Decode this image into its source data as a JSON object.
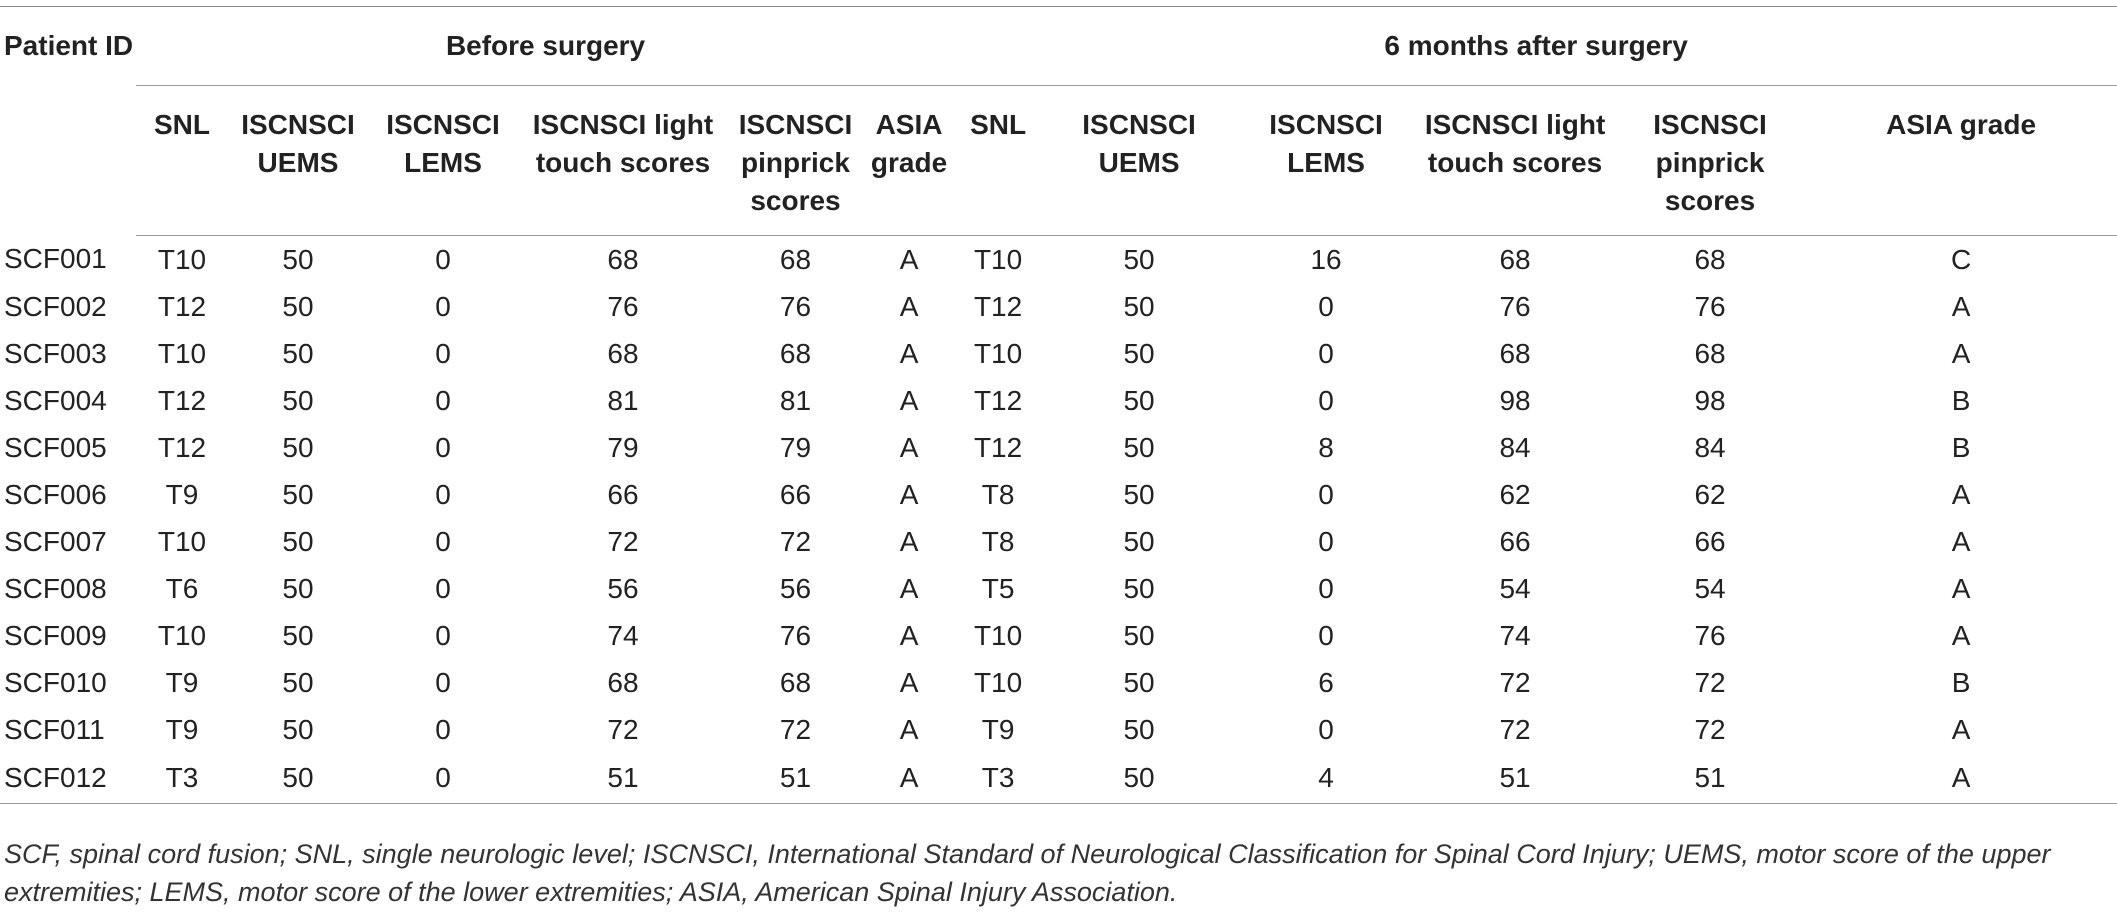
{
  "table": {
    "patient_id_header": "Patient ID",
    "group_before": "Before surgery",
    "group_after": "6 months after surgery",
    "columns": [
      "SNL",
      "ISCNSCI UEMS",
      "ISCNSCI LEMS",
      "ISCNSCI light touch scores",
      "ISCNSCI pinprick scores",
      "ASIA grade"
    ],
    "rows": [
      [
        "SCF001",
        "T10",
        "50",
        "0",
        "68",
        "68",
        "A",
        "T10",
        "50",
        "16",
        "68",
        "68",
        "C"
      ],
      [
        "SCF002",
        "T12",
        "50",
        "0",
        "76",
        "76",
        "A",
        "T12",
        "50",
        "0",
        "76",
        "76",
        "A"
      ],
      [
        "SCF003",
        "T10",
        "50",
        "0",
        "68",
        "68",
        "A",
        "T10",
        "50",
        "0",
        "68",
        "68",
        "A"
      ],
      [
        "SCF004",
        "T12",
        "50",
        "0",
        "81",
        "81",
        "A",
        "T12",
        "50",
        "0",
        "98",
        "98",
        "B"
      ],
      [
        "SCF005",
        "T12",
        "50",
        "0",
        "79",
        "79",
        "A",
        "T12",
        "50",
        "8",
        "84",
        "84",
        "B"
      ],
      [
        "SCF006",
        "T9",
        "50",
        "0",
        "66",
        "66",
        "A",
        "T8",
        "50",
        "0",
        "62",
        "62",
        "A"
      ],
      [
        "SCF007",
        "T10",
        "50",
        "0",
        "72",
        "72",
        "A",
        "T8",
        "50",
        "0",
        "66",
        "66",
        "A"
      ],
      [
        "SCF008",
        "T6",
        "50",
        "0",
        "56",
        "56",
        "A",
        "T5",
        "50",
        "0",
        "54",
        "54",
        "A"
      ],
      [
        "SCF009",
        "T10",
        "50",
        "0",
        "74",
        "76",
        "A",
        "T10",
        "50",
        "0",
        "74",
        "76",
        "A"
      ],
      [
        "SCF010",
        "T9",
        "50",
        "0",
        "68",
        "68",
        "A",
        "T10",
        "50",
        "6",
        "72",
        "72",
        "B"
      ],
      [
        "SCF011",
        "T9",
        "50",
        "0",
        "72",
        "72",
        "A",
        "T9",
        "50",
        "0",
        "72",
        "72",
        "A"
      ],
      [
        "SCF012",
        "T3",
        "50",
        "0",
        "51",
        "51",
        "A",
        "T3",
        "50",
        "4",
        "51",
        "51",
        "A"
      ]
    ]
  },
  "footnote": "SCF, spinal cord fusion; SNL, single neurologic level; ISCNSCI, International Standard of Neurological Classification for Spinal Cord Injury; UEMS, motor score of the upper extremities; LEMS, motor score of the lower extremities; ASIA, American Spinal Injury Association."
}
